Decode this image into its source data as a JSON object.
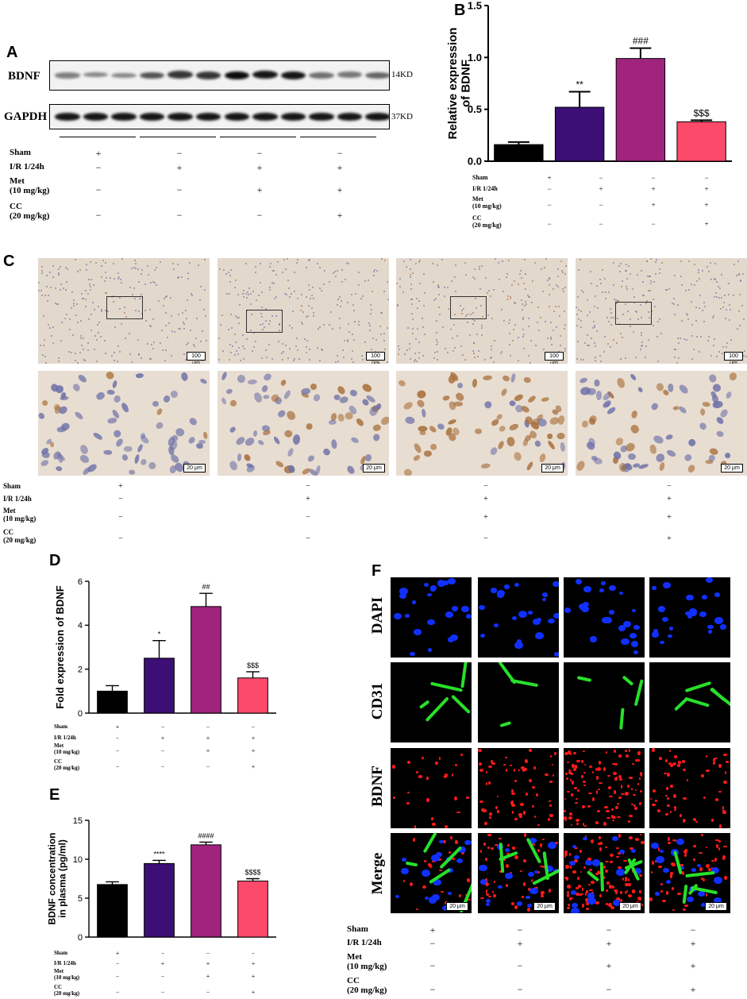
{
  "panel_labels": {
    "A": "A",
    "B": "B",
    "C": "C",
    "D": "D",
    "E": "E",
    "F": "F"
  },
  "groups": {
    "row_labels": [
      "Sham",
      "I/R 1/24h",
      "Met",
      "(10 mg/kg)",
      "CC",
      "(20 mg/kg)"
    ],
    "sham": [
      "+",
      "−",
      "−",
      "−"
    ],
    "ir": [
      "−",
      "+",
      "+",
      "+"
    ],
    "met": [
      "−",
      "−",
      "+",
      "+"
    ],
    "cc": [
      "−",
      "−",
      "−",
      "+"
    ]
  },
  "panelA": {
    "bdnf_label": "BDNF",
    "gapdh_label": "GAPDH",
    "bdnf_size": "14KD",
    "gapdh_size": "37KD",
    "bdnf_band_intensity": [
      0.35,
      0.3,
      0.3,
      0.6,
      0.75,
      0.75,
      0.95,
      0.9,
      0.9,
      0.45,
      0.4,
      0.5
    ],
    "gapdh_band_intensity": [
      0.9,
      0.9,
      0.9,
      0.9,
      0.9,
      0.9,
      0.9,
      0.9,
      0.9,
      0.9,
      0.9,
      0.9
    ]
  },
  "panelC": {
    "scale_low": "100 μm",
    "scale_high": "20 μm"
  },
  "panelF": {
    "rows": [
      "DAPI",
      "CD31",
      "BDNF",
      "Merge"
    ],
    "scale": "20 μm"
  },
  "colors": {
    "sham": "#000000",
    "ir": "#3b0f73",
    "met": "#a0247e",
    "cc": "#fc4a6b"
  },
  "chart_data": [
    {
      "panel": "B",
      "type": "bar",
      "categories": [
        "Sham",
        "I/R 1/24h",
        "I/R + Met",
        "I/R + Met + CC"
      ],
      "values": [
        0.16,
        0.52,
        0.99,
        0.38
      ],
      "errors": [
        0.025,
        0.15,
        0.1,
        0.015
      ],
      "annotations": [
        "",
        "**",
        "###",
        "$$$"
      ],
      "ylabel": "Relative expression of BDNF",
      "ylim": [
        0,
        1.5
      ],
      "yticks": [
        "0.0",
        "0.5",
        "1.0",
        "1.5"
      ]
    },
    {
      "panel": "D",
      "type": "bar",
      "categories": [
        "Sham",
        "I/R 1/24h",
        "I/R + Met",
        "I/R + Met + CC"
      ],
      "values": [
        1.0,
        2.5,
        4.85,
        1.6
      ],
      "errors": [
        0.25,
        0.8,
        0.6,
        0.28
      ],
      "annotations": [
        "",
        "*",
        "##",
        "$$$"
      ],
      "ylabel": "Fold expression of BDNF",
      "ylim": [
        0,
        6
      ],
      "yticks": [
        "0",
        "2",
        "4",
        "6"
      ]
    },
    {
      "panel": "E",
      "type": "bar",
      "categories": [
        "Sham",
        "I/R 1/24h",
        "I/R + Met",
        "I/R + Met + CC"
      ],
      "values": [
        6.75,
        9.45,
        11.85,
        7.2
      ],
      "errors": [
        0.35,
        0.4,
        0.35,
        0.3
      ],
      "annotations": [
        "",
        "****",
        "####",
        "$$$$"
      ],
      "ylabel": "BDNF concentration in plasma (pg/ml)",
      "ylim": [
        0,
        15
      ],
      "yticks": [
        "0",
        "5",
        "10",
        "15"
      ]
    }
  ]
}
